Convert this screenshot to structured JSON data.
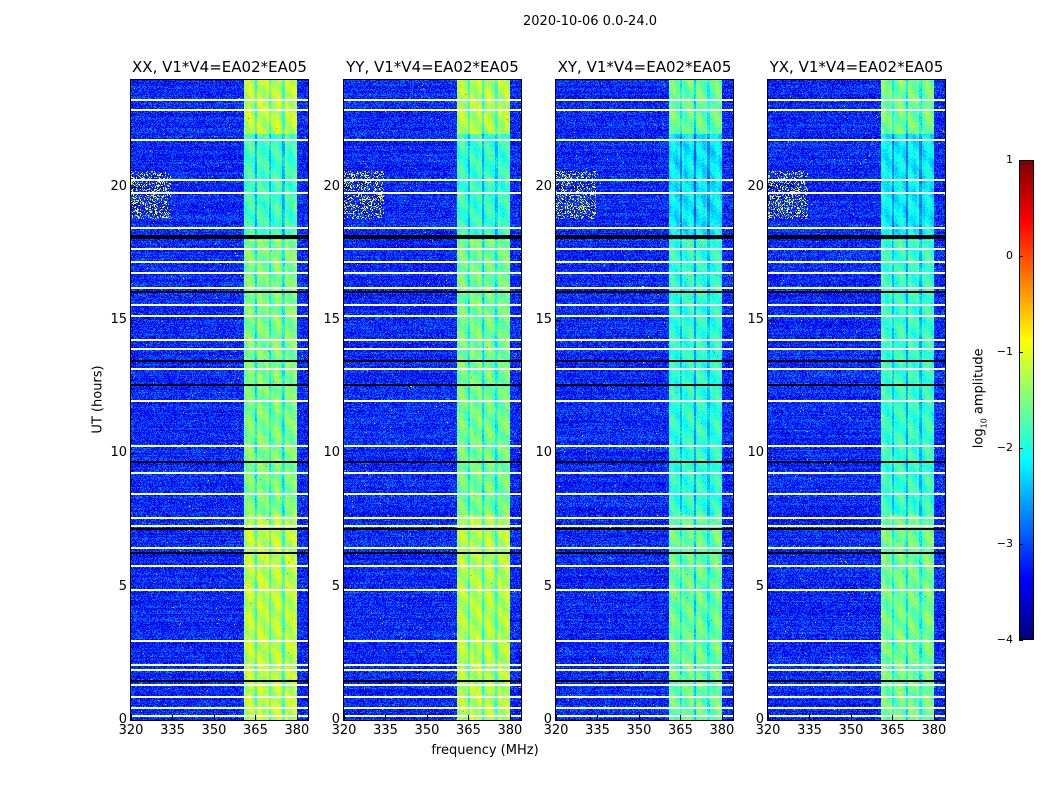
{
  "chart_data": {
    "type": "heatmap",
    "title": "2020-10-06 0.0-24.0",
    "xlabel": "frequency (MHz)",
    "ylabel": "UT (hours)",
    "xlim": [
      320,
      384
    ],
    "ylim": [
      0,
      24
    ],
    "xticks": [
      320,
      335,
      350,
      365,
      380
    ],
    "yticks": [
      0,
      5,
      10,
      15,
      20
    ],
    "panels": [
      {
        "title": "XX, V1*V4=EA02*EA05",
        "band_level": -1.2
      },
      {
        "title": "YY, V1*V4=EA02*EA05",
        "band_level": -1.25
      },
      {
        "title": "XY, V1*V4=EA02*EA05",
        "band_level": -1.6
      },
      {
        "title": "YX, V1*V4=EA02*EA05",
        "band_level": -1.55
      }
    ],
    "background_level": -3.2,
    "bright_band_mhz": [
      360.5,
      380
    ],
    "band_gaps_mhz": [
      365,
      370,
      375
    ],
    "flagged_white_hours": [
      0.2,
      0.5,
      0.9,
      1.35,
      1.9,
      2.1,
      3.0,
      4.9,
      5.8,
      6.5,
      7.3,
      7.6,
      8.5,
      9.3,
      10.3,
      12.0,
      13.2,
      13.95,
      14.3,
      15.2,
      15.6,
      16.25,
      16.8,
      17.2,
      17.7,
      18.5,
      19.8,
      20.3,
      21.8,
      22.9,
      23.3
    ],
    "flagged_black_hours": [
      1.5,
      6.3,
      7.2,
      9.7,
      12.6,
      13.5,
      16.1,
      18.1,
      18.2
    ],
    "colorbar": {
      "label_prefix": "log",
      "label_sub": "10",
      "label_suffix": " amplitude",
      "range": [
        -4,
        1
      ],
      "ticks": [
        "1",
        "0",
        "−1",
        "−2",
        "−3",
        "−4"
      ],
      "colormap": "jet"
    }
  }
}
